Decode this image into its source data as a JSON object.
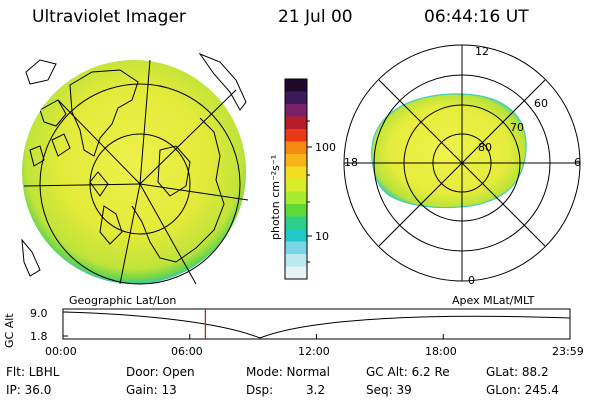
{
  "header": {
    "instrument": "Ultraviolet Imager",
    "date": "21 Jul 00",
    "time": "06:44:16 UT"
  },
  "left_panel": {
    "label": "Geographic Lat/Lon"
  },
  "right_panel": {
    "label": "Apex MLat/MLT",
    "mlt_labels": [
      "12",
      "18",
      "6",
      "0"
    ],
    "lat_labels": [
      "60",
      "70",
      "80"
    ]
  },
  "colorbar": {
    "unit_label": "photon cm⁻²s⁻¹",
    "ticks": [
      "100",
      "10"
    ],
    "colors": [
      "#1e0a28",
      "#3b1a5c",
      "#7a1f6a",
      "#b81c2a",
      "#e83a18",
      "#f58a10",
      "#f7b418",
      "#f2de20",
      "#d6ee2a",
      "#a8ea30",
      "#60d838",
      "#2ccf8a",
      "#22c8c8",
      "#7ad6e6",
      "#bce8f2",
      "#e6f4f8"
    ]
  },
  "altitude_plot": {
    "ylabel": "GC Alt",
    "yticks": [
      "9.0",
      "1.8"
    ],
    "xticks": [
      "00:00",
      "06:00",
      "12:00",
      "18:00",
      "23:59"
    ],
    "marker_time_hours": 6.74
  },
  "info": {
    "filter": "Flt: LBHL",
    "door": "Door: Open",
    "mode": "Mode: Normal",
    "gc_alt": "GC Alt: 6.2 Re",
    "glat": "GLat: 88.2",
    "ip": "IP: 36.0",
    "gain": "Gain: 13",
    "dsp_label": "Dsp:",
    "dsp_value": "3.2",
    "seq": "Seq: 39",
    "glon": "GLon: 245.4"
  }
}
